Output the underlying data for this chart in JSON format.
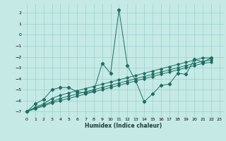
{
  "background_color": "#c5eae6",
  "grid_color": "#9ecece",
  "line_color": "#1e6e62",
  "xlabel": "Humidex (Indice chaleur)",
  "ylim": [
    -7.5,
    2.8
  ],
  "xlim": [
    -0.5,
    23.5
  ],
  "yticks": [
    -7,
    -6,
    -5,
    -4,
    -3,
    -2,
    -1,
    0,
    1,
    2
  ],
  "xticks": [
    0,
    1,
    2,
    3,
    4,
    5,
    6,
    7,
    8,
    9,
    10,
    11,
    12,
    13,
    14,
    15,
    16,
    17,
    18,
    19,
    20,
    21,
    22,
    23
  ],
  "x_spike": [
    0,
    1,
    2,
    3,
    4,
    5,
    6,
    7,
    8,
    9,
    10,
    11,
    12,
    13,
    14,
    15,
    16,
    17,
    18,
    19,
    20,
    21,
    22
  ],
  "y_spike": [
    -7.0,
    -6.3,
    -5.9,
    -5.0,
    -4.8,
    -4.8,
    -5.2,
    -5.3,
    -5.1,
    -2.6,
    -3.5,
    2.3,
    -2.8,
    -4.2,
    -6.1,
    -5.4,
    -4.6,
    -4.5,
    -3.5,
    -3.6,
    -2.2,
    -2.5,
    -2.1
  ],
  "x_line1": [
    0,
    1,
    2,
    3,
    4,
    5,
    6,
    7,
    8,
    9,
    10,
    11,
    12,
    13,
    14,
    15,
    16,
    17,
    18,
    19,
    20,
    21,
    22
  ],
  "y_line1": [
    -7.0,
    -6.6,
    -6.3,
    -5.8,
    -5.5,
    -5.3,
    -5.1,
    -4.9,
    -4.7,
    -4.5,
    -4.3,
    -4.1,
    -3.9,
    -3.7,
    -3.5,
    -3.3,
    -3.1,
    -2.9,
    -2.7,
    -2.5,
    -2.3,
    -2.1,
    -2.1
  ],
  "x_line2": [
    0,
    1,
    2,
    3,
    4,
    5,
    6,
    7,
    8,
    9,
    10,
    11,
    12,
    13,
    14,
    15,
    16,
    17,
    18,
    19,
    20,
    21,
    22
  ],
  "y_line2": [
    -7.0,
    -6.7,
    -6.4,
    -6.1,
    -5.8,
    -5.6,
    -5.4,
    -5.2,
    -5.0,
    -4.8,
    -4.6,
    -4.4,
    -4.2,
    -4.0,
    -3.8,
    -3.6,
    -3.4,
    -3.2,
    -3.0,
    -2.8,
    -2.6,
    -2.4,
    -2.3
  ],
  "x_line3": [
    0,
    1,
    2,
    3,
    4,
    5,
    6,
    7,
    8,
    9,
    10,
    11,
    12,
    13,
    14,
    15,
    16,
    17,
    18,
    19,
    20,
    21,
    22
  ],
  "y_line3": [
    -7.0,
    -6.75,
    -6.5,
    -6.2,
    -6.0,
    -5.8,
    -5.6,
    -5.4,
    -5.2,
    -5.0,
    -4.8,
    -4.6,
    -4.4,
    -4.2,
    -4.0,
    -3.8,
    -3.6,
    -3.4,
    -3.2,
    -3.0,
    -2.8,
    -2.6,
    -2.5
  ]
}
